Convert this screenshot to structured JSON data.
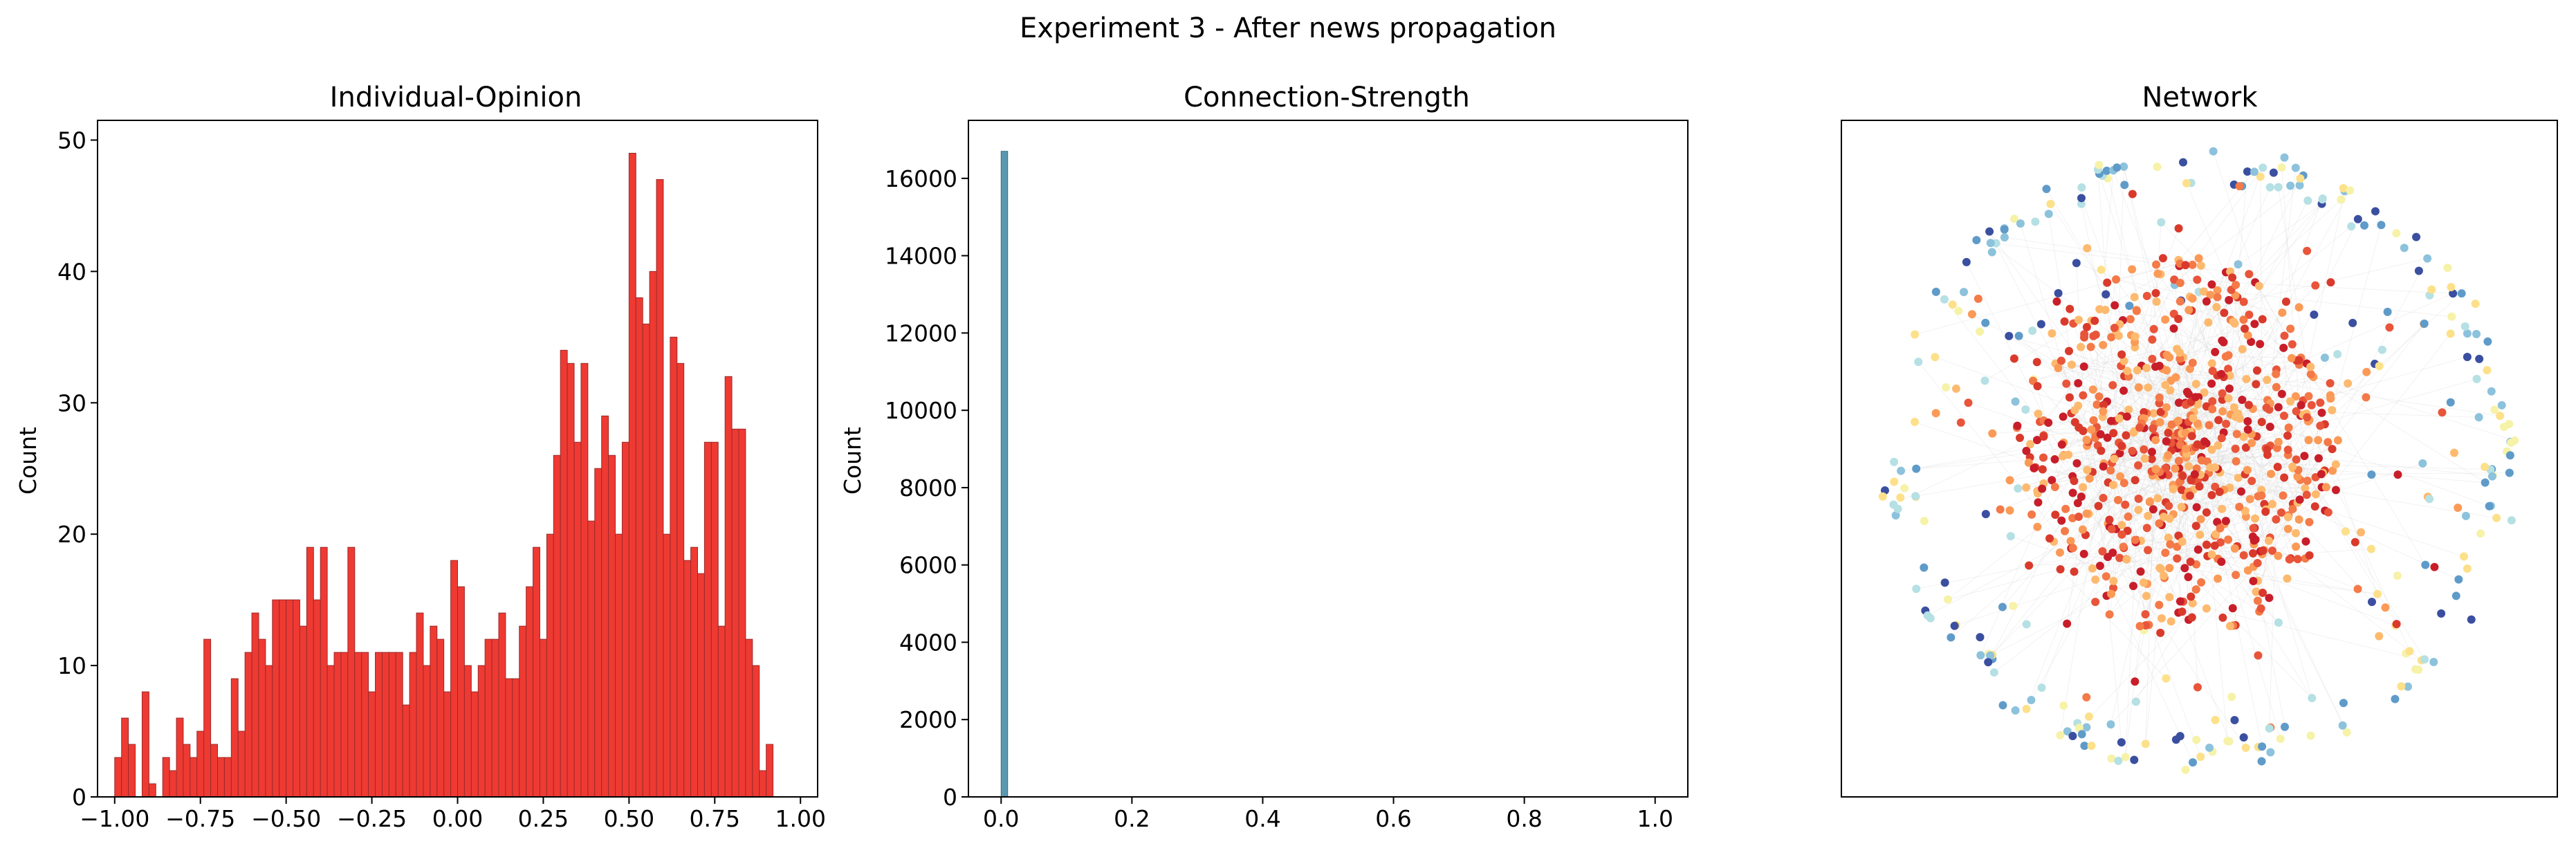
{
  "figure": {
    "suptitle": "Experiment 3 - After news propagation"
  },
  "chart_data": [
    {
      "type": "bar",
      "title": "Individual-Opinion",
      "xlabel": "",
      "ylabel": "Count",
      "xlim": [
        -1.05,
        1.05
      ],
      "ylim": [
        0,
        51.5
      ],
      "xticks": [
        -1.0,
        -0.75,
        -0.5,
        -0.25,
        0.0,
        0.25,
        0.5,
        0.75,
        1.0
      ],
      "xtick_labels": [
        "−1.00",
        "−0.75",
        "−0.50",
        "−0.25",
        "0.00",
        "0.25",
        "0.50",
        "0.75",
        "1.00"
      ],
      "yticks": [
        0,
        10,
        20,
        30,
        40,
        50
      ],
      "ytick_labels": [
        "0",
        "10",
        "20",
        "30",
        "40",
        "50"
      ],
      "bin_start": -1.0,
      "bin_width": 0.02,
      "values": [
        3,
        6,
        4,
        0,
        8,
        1,
        0,
        3,
        2,
        6,
        4,
        3,
        5,
        12,
        4,
        3,
        3,
        9,
        5,
        11,
        14,
        12,
        10,
        15,
        15,
        15,
        15,
        13,
        19,
        15,
        19,
        10,
        11,
        11,
        19,
        11,
        11,
        8,
        11,
        11,
        11,
        11,
        7,
        11,
        14,
        10,
        13,
        12,
        8,
        18,
        16,
        10,
        8,
        10,
        12,
        12,
        14,
        9,
        9,
        13,
        16,
        19,
        12,
        20,
        26,
        34,
        33,
        27,
        33,
        21,
        25,
        29,
        26,
        20,
        27,
        49,
        38,
        36,
        40,
        47,
        20,
        35,
        33,
        18,
        19,
        17,
        27,
        27,
        13,
        32,
        28,
        28,
        12,
        10,
        2,
        4
      ],
      "bar_color": "#ee3a32",
      "edge_color": "#9b2a2a"
    },
    {
      "type": "bar",
      "title": "Connection-Strength",
      "xlabel": "",
      "ylabel": "Count",
      "xlim": [
        -0.05,
        1.05
      ],
      "ylim": [
        0,
        17500
      ],
      "xticks": [
        0.0,
        0.2,
        0.4,
        0.6,
        0.8,
        1.0
      ],
      "xtick_labels": [
        "0.0",
        "0.2",
        "0.4",
        "0.6",
        "0.8",
        "1.0"
      ],
      "yticks": [
        0,
        2000,
        4000,
        6000,
        8000,
        10000,
        12000,
        14000,
        16000
      ],
      "ytick_labels": [
        "0",
        "2000",
        "4000",
        "6000",
        "8000",
        "10000",
        "12000",
        "14000",
        "16000"
      ],
      "bin_start": 0.0,
      "bin_width": 0.01,
      "values": [
        16700
      ],
      "bar_color": "#5b98b0",
      "edge_color": "#3a6c80"
    },
    {
      "type": "scatter",
      "title": "Network",
      "grid": false,
      "edge_color": "#d9d9d9",
      "peripheral_palette": [
        "#3b4fa0",
        "#5f9bc9",
        "#8cc2dc",
        "#b5e0e4",
        "#f6f2a8",
        "#fde08a"
      ],
      "core_palette": [
        "#c81e2a",
        "#d93a2c",
        "#e8553a",
        "#f47a48",
        "#fb9a57",
        "#fdba6f"
      ]
    }
  ]
}
